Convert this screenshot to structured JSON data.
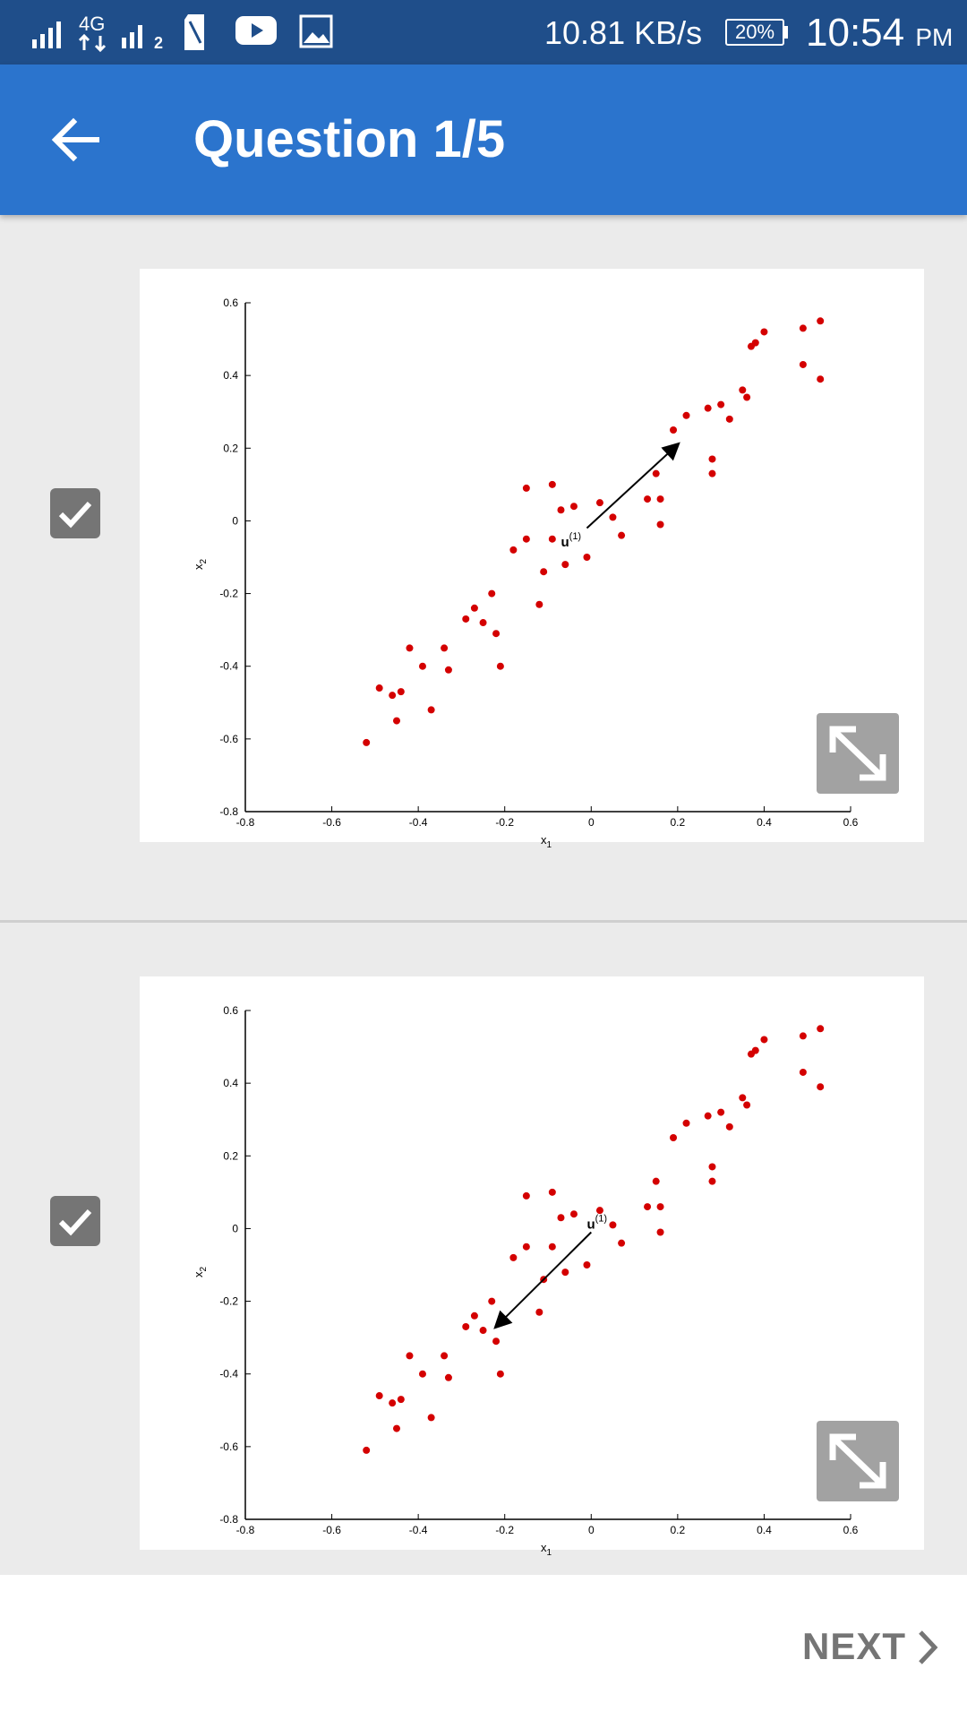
{
  "status_bar": {
    "network_label": "4G",
    "sim2_label": "2",
    "data_speed": "10.81 KB/s",
    "battery": "20%",
    "time": "10:54",
    "ampm": "PM",
    "icons": [
      "signal-sim1-icon",
      "4g-data-icon",
      "signal-sim2-icon",
      "sim-card-icon",
      "youtube-icon",
      "gallery-icon",
      "battery-icon"
    ]
  },
  "app_bar": {
    "title": "Question 1/5",
    "back_icon": "arrow-left-icon"
  },
  "colors": {
    "status_bar": "#1f4e8a",
    "app_bar": "#2b74cd",
    "points": "#d40000",
    "checkbox": "#757575"
  },
  "options": [
    {
      "checked": true,
      "check_icon": "checkmark-icon",
      "expand_icon": "expand-diagonal-icon",
      "vector_label": "u",
      "vector_sup": "(1)"
    },
    {
      "checked": true,
      "check_icon": "checkmark-icon",
      "expand_icon": "expand-diagonal-icon",
      "vector_label": "u",
      "vector_sup": "(1)"
    }
  ],
  "chart_data": [
    {
      "type": "scatter",
      "title": "",
      "xlabel": "x",
      "xlabel_sub": "1",
      "ylabel": "x",
      "ylabel_sub": "2",
      "xlim": [
        -0.8,
        0.6
      ],
      "ylim": [
        -0.8,
        0.6
      ],
      "xticks": [
        "-0.8",
        "-0.6",
        "-0.4",
        "-0.2",
        "0",
        "0.2",
        "0.4",
        "0.6"
      ],
      "yticks": [
        "0.6",
        "0.4",
        "0.2",
        "0",
        "-0.2",
        "-0.4",
        "-0.6",
        "-0.8"
      ],
      "grid": false,
      "points": [
        [
          -0.52,
          -0.61
        ],
        [
          -0.49,
          -0.46
        ],
        [
          -0.46,
          -0.48
        ],
        [
          -0.44,
          -0.47
        ],
        [
          -0.45,
          -0.55
        ],
        [
          -0.42,
          -0.35
        ],
        [
          -0.39,
          -0.4
        ],
        [
          -0.37,
          -0.52
        ],
        [
          -0.34,
          -0.35
        ],
        [
          -0.33,
          -0.41
        ],
        [
          -0.29,
          -0.27
        ],
        [
          -0.27,
          -0.24
        ],
        [
          -0.25,
          -0.28
        ],
        [
          -0.23,
          -0.2
        ],
        [
          -0.22,
          -0.31
        ],
        [
          -0.21,
          -0.4
        ],
        [
          -0.18,
          -0.08
        ],
        [
          -0.15,
          -0.05
        ],
        [
          -0.15,
          0.09
        ],
        [
          -0.12,
          -0.23
        ],
        [
          -0.11,
          -0.14
        ],
        [
          -0.09,
          0.1
        ],
        [
          -0.09,
          -0.05
        ],
        [
          -0.07,
          0.03
        ],
        [
          -0.06,
          -0.12
        ],
        [
          -0.04,
          0.04
        ],
        [
          -0.01,
          -0.1
        ],
        [
          0.02,
          0.05
        ],
        [
          0.05,
          0.01
        ],
        [
          0.07,
          -0.04
        ],
        [
          0.13,
          0.06
        ],
        [
          0.15,
          0.13
        ],
        [
          0.16,
          0.06
        ],
        [
          0.16,
          -0.01
        ],
        [
          0.19,
          0.25
        ],
        [
          0.22,
          0.29
        ],
        [
          0.27,
          0.31
        ],
        [
          0.28,
          0.17
        ],
        [
          0.28,
          0.13
        ],
        [
          0.3,
          0.32
        ],
        [
          0.32,
          0.28
        ],
        [
          0.35,
          0.36
        ],
        [
          0.36,
          0.34
        ],
        [
          0.37,
          0.48
        ],
        [
          0.38,
          0.49
        ],
        [
          0.4,
          0.52
        ],
        [
          0.49,
          0.53
        ],
        [
          0.49,
          0.43
        ],
        [
          0.53,
          0.55
        ],
        [
          0.53,
          0.39
        ]
      ],
      "vector": {
        "from": [
          -0.01,
          -0.02
        ],
        "to": [
          0.2,
          0.21
        ]
      },
      "annotation": {
        "text": "u",
        "sup": "(1)",
        "at": [
          -0.07,
          -0.07
        ]
      }
    },
    {
      "type": "scatter",
      "title": "",
      "xlabel": "x",
      "xlabel_sub": "1",
      "ylabel": "x",
      "ylabel_sub": "2",
      "xlim": [
        -0.8,
        0.6
      ],
      "ylim": [
        -0.8,
        0.6
      ],
      "xticks": [
        "-0.8",
        "-0.6",
        "-0.4",
        "-0.2",
        "0",
        "0.2",
        "0.4",
        "0.6"
      ],
      "yticks": [
        "0.6",
        "0.4",
        "0.2",
        "0",
        "-0.2",
        "-0.4",
        "-0.6",
        "-0.8"
      ],
      "grid": false,
      "points": [
        [
          -0.52,
          -0.61
        ],
        [
          -0.49,
          -0.46
        ],
        [
          -0.46,
          -0.48
        ],
        [
          -0.44,
          -0.47
        ],
        [
          -0.45,
          -0.55
        ],
        [
          -0.42,
          -0.35
        ],
        [
          -0.39,
          -0.4
        ],
        [
          -0.37,
          -0.52
        ],
        [
          -0.34,
          -0.35
        ],
        [
          -0.33,
          -0.41
        ],
        [
          -0.29,
          -0.27
        ],
        [
          -0.27,
          -0.24
        ],
        [
          -0.25,
          -0.28
        ],
        [
          -0.23,
          -0.2
        ],
        [
          -0.22,
          -0.31
        ],
        [
          -0.21,
          -0.4
        ],
        [
          -0.18,
          -0.08
        ],
        [
          -0.15,
          -0.05
        ],
        [
          -0.15,
          0.09
        ],
        [
          -0.12,
          -0.23
        ],
        [
          -0.11,
          -0.14
        ],
        [
          -0.09,
          0.1
        ],
        [
          -0.09,
          -0.05
        ],
        [
          -0.07,
          0.03
        ],
        [
          -0.06,
          -0.12
        ],
        [
          -0.04,
          0.04
        ],
        [
          -0.01,
          -0.1
        ],
        [
          0.02,
          0.05
        ],
        [
          0.05,
          0.01
        ],
        [
          0.07,
          -0.04
        ],
        [
          0.13,
          0.06
        ],
        [
          0.15,
          0.13
        ],
        [
          0.16,
          0.06
        ],
        [
          0.16,
          -0.01
        ],
        [
          0.19,
          0.25
        ],
        [
          0.22,
          0.29
        ],
        [
          0.27,
          0.31
        ],
        [
          0.28,
          0.17
        ],
        [
          0.28,
          0.13
        ],
        [
          0.3,
          0.32
        ],
        [
          0.32,
          0.28
        ],
        [
          0.35,
          0.36
        ],
        [
          0.36,
          0.34
        ],
        [
          0.37,
          0.48
        ],
        [
          0.38,
          0.49
        ],
        [
          0.4,
          0.52
        ],
        [
          0.49,
          0.53
        ],
        [
          0.49,
          0.43
        ],
        [
          0.53,
          0.55
        ],
        [
          0.53,
          0.39
        ]
      ],
      "vector": {
        "from": [
          0.0,
          -0.01
        ],
        "to": [
          -0.22,
          -0.27
        ]
      },
      "annotation": {
        "text": "u",
        "sup": "(1)",
        "at": [
          -0.01,
          0.0
        ]
      }
    }
  ],
  "bottom_bar": {
    "next_label": "NEXT",
    "next_icon": "chevron-right-icon"
  }
}
